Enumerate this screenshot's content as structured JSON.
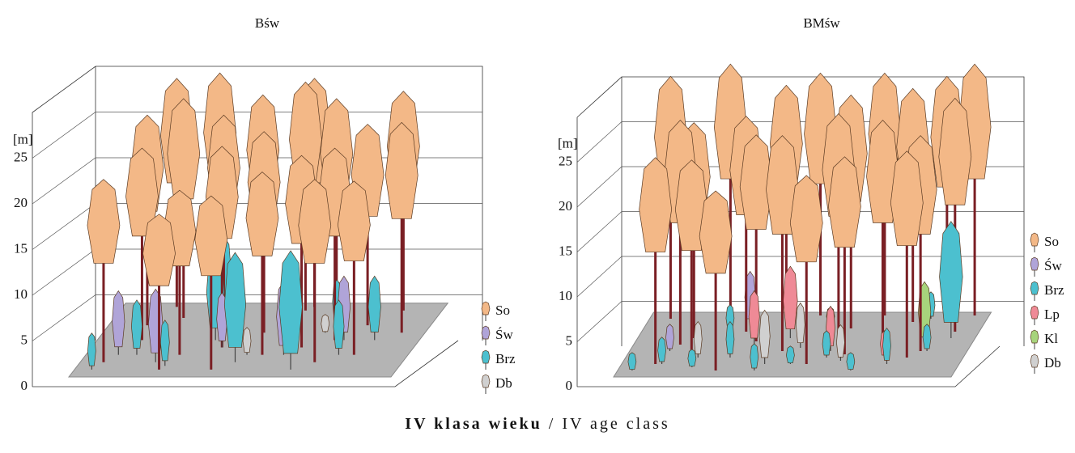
{
  "chart_data": [
    {
      "type": "stand",
      "title": "Bśw",
      "ylabel": "[m]",
      "ylim": [
        0,
        30
      ],
      "yticks": [
        0,
        5,
        10,
        15,
        20,
        25
      ],
      "grid": true,
      "legend": "right",
      "series": [
        {
          "name": "So",
          "color": "#f3b887",
          "x": [
            0.05,
            0.12,
            0.2,
            0.28,
            0.35,
            0.42,
            0.5,
            0.58,
            0.66,
            0.74,
            0.82,
            0.9,
            0.15,
            0.3,
            0.45,
            0.6,
            0.75,
            0.1,
            0.25,
            0.4,
            0.55,
            0.7,
            0.85,
            0.95
          ],
          "depth": [
            0.2,
            0.5,
            0.8,
            0.3,
            0.7,
            0.1,
            0.6,
            0.9,
            0.4,
            0.2,
            0.7,
            0.9,
            0.95,
            0.9,
            0.85,
            0.95,
            0.5,
            0.7,
            0.1,
            0.4,
            0.3,
            0.8,
            0.3,
            0.6
          ],
          "values": [
            20,
            21,
            24,
            18,
            23,
            19,
            22,
            25,
            21,
            20,
            22,
            24,
            25,
            26,
            24,
            25,
            21,
            23,
            17,
            22,
            20,
            24,
            19,
            23
          ]
        },
        {
          "name": "Św",
          "color": "#b0a4d8",
          "x": [
            0.08,
            0.22,
            0.4,
            0.62,
            0.78
          ],
          "depth": [
            0.3,
            0.2,
            0.4,
            0.3,
            0.5
          ],
          "values": [
            7,
            8,
            6,
            8,
            7
          ]
        },
        {
          "name": "Brz",
          "color": "#4cc0cf",
          "x": [
            0.03,
            0.14,
            0.26,
            0.36,
            0.48,
            0.56,
            0.68,
            0.8,
            0.88,
            0.33,
            0.52,
            0.72
          ],
          "depth": [
            0.1,
            0.3,
            0.15,
            0.5,
            0.2,
            0.6,
            0.1,
            0.3,
            0.5,
            0.8,
            0.9,
            0.7
          ],
          "values": [
            4,
            6,
            5,
            10,
            12,
            5,
            13,
            6,
            7,
            9,
            4,
            5
          ]
        },
        {
          "name": "Db",
          "color": "#d0d0d0",
          "x": [
            0.2,
            0.5,
            0.7
          ],
          "depth": [
            0.4,
            0.3,
            0.6
          ],
          "values": [
            2,
            3,
            2
          ]
        }
      ]
    },
    {
      "type": "stand",
      "title": "BMśw",
      "ylabel": "[m]",
      "ylim": [
        0,
        30
      ],
      "yticks": [
        0,
        5,
        10,
        15,
        20,
        25
      ],
      "grid": true,
      "legend": "right",
      "series": [
        {
          "name": "So",
          "color": "#f3b887",
          "x": [
            0.04,
            0.12,
            0.22,
            0.3,
            0.4,
            0.5,
            0.6,
            0.7,
            0.8,
            0.9,
            0.98,
            0.08,
            0.18,
            0.28,
            0.45,
            0.55,
            0.65,
            0.75,
            0.85,
            0.95,
            0.15,
            0.35,
            0.62,
            0.88
          ],
          "depth": [
            0.9,
            0.5,
            0.95,
            0.7,
            0.9,
            0.95,
            0.6,
            0.95,
            0.85,
            0.9,
            0.95,
            0.2,
            0.3,
            0.1,
            0.4,
            0.2,
            0.35,
            0.5,
            0.3,
            0.7,
            0.6,
            0.55,
            0.75,
            0.4
          ],
          "values": [
            27,
            25,
            28,
            24,
            26,
            27,
            25,
            27,
            26,
            27,
            28,
            23,
            22,
            20,
            24,
            21,
            22,
            25,
            23,
            26,
            24,
            23,
            26,
            24
          ]
        },
        {
          "name": "Św",
          "color": "#b0a4d8",
          "x": [
            0.1,
            0.3
          ],
          "depth": [
            0.4,
            0.8
          ],
          "values": [
            3,
            6
          ]
        },
        {
          "name": "Brz",
          "color": "#4cc0cf",
          "x": [
            0.02,
            0.1,
            0.2,
            0.3,
            0.4,
            0.5,
            0.6,
            0.7,
            0.8,
            0.9,
            0.95,
            0.25,
            0.55,
            0.85
          ],
          "depth": [
            0.1,
            0.2,
            0.15,
            0.3,
            0.1,
            0.2,
            0.3,
            0.1,
            0.2,
            0.4,
            0.6,
            0.7,
            0.8,
            0.9
          ],
          "values": [
            2,
            3,
            2,
            4,
            3,
            2,
            3,
            2,
            4,
            3,
            13,
            3,
            2,
            3
          ]
        },
        {
          "name": "Lp",
          "color": "#ef8a96",
          "x": [
            0.35,
            0.45,
            0.6,
            0.78
          ],
          "depth": [
            0.5,
            0.6,
            0.4,
            0.3
          ],
          "values": [
            6,
            8,
            5,
            3
          ]
        },
        {
          "name": "Kl",
          "color": "#a7d47c",
          "x": [
            0.88
          ],
          "depth": [
            0.5
          ],
          "values": [
            7
          ]
        },
        {
          "name": "Db",
          "color": "#d0d0d0",
          "x": [
            0.2,
            0.42,
            0.5,
            0.65
          ],
          "depth": [
            0.3,
            0.2,
            0.45,
            0.25
          ],
          "values": [
            4,
            6,
            5,
            4
          ]
        }
      ]
    }
  ],
  "caption": {
    "pl": "IV klasa wieku",
    "separator": "/",
    "en": "IV age class"
  }
}
